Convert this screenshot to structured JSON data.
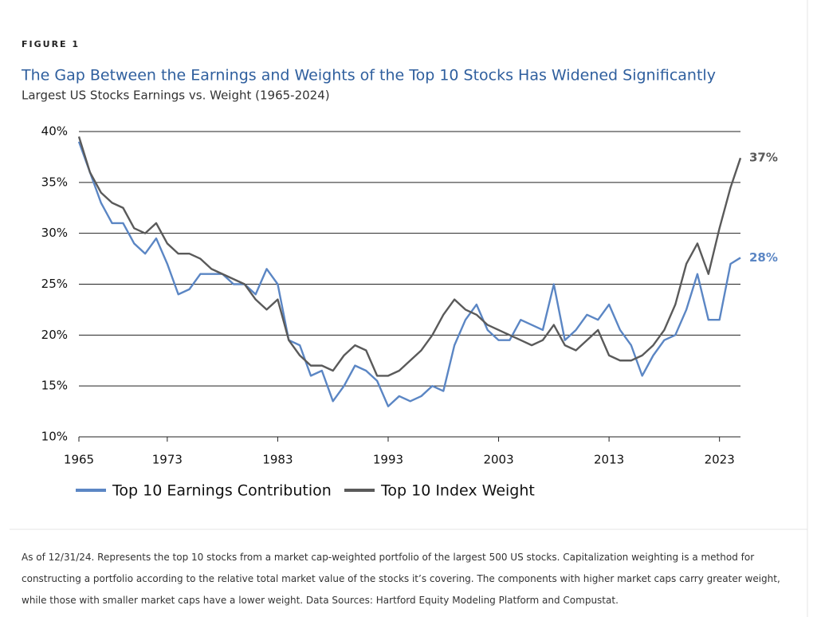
{
  "figure_label": "FIGURE 1",
  "chart_data": {
    "type": "line",
    "title": "The Gap Between the Earnings and Weights of the Top 10 Stocks Has Widened Significantly",
    "subtitle": "Largest US Stocks Earnings vs. Weight (1965-2024)",
    "x": [
      1965,
      1966,
      1967,
      1968,
      1969,
      1970,
      1971,
      1972,
      1973,
      1974,
      1975,
      1976,
      1977,
      1978,
      1979,
      1980,
      1981,
      1982,
      1983,
      1984,
      1985,
      1986,
      1987,
      1988,
      1989,
      1990,
      1991,
      1992,
      1993,
      1994,
      1995,
      1996,
      1997,
      1998,
      1999,
      2000,
      2001,
      2002,
      2003,
      2004,
      2005,
      2006,
      2007,
      2008,
      2009,
      2010,
      2011,
      2012,
      2013,
      2014,
      2015,
      2016,
      2017,
      2018,
      2019,
      2020,
      2021,
      2022,
      2023,
      2024,
      2024.9
    ],
    "xlim": [
      1965,
      2024.9
    ],
    "xticks": [
      1965,
      1973,
      1983,
      1993,
      2003,
      2013,
      2023
    ],
    "ylim": [
      10,
      40
    ],
    "yticks": [
      {
        "value": 10,
        "label": "10%"
      },
      {
        "value": 15,
        "label": "15%"
      },
      {
        "value": 20,
        "label": "20%"
      },
      {
        "value": 25,
        "label": "25%"
      },
      {
        "value": 30,
        "label": "30%"
      },
      {
        "value": 35,
        "label": "35%"
      },
      {
        "value": 40,
        "label": "40%"
      }
    ],
    "grid": true,
    "series": [
      {
        "name": "Top 10 Earnings Contribution",
        "color": "#5b86c4",
        "values": [
          39,
          36,
          33,
          31,
          31,
          29,
          28,
          29.5,
          27,
          24,
          24.5,
          26,
          26,
          26,
          25,
          25,
          24,
          26.5,
          25,
          19.5,
          19,
          16,
          16.5,
          13.5,
          15,
          17,
          16.5,
          15.5,
          13,
          14,
          13.5,
          14,
          15,
          14.5,
          19,
          21.5,
          23,
          20.5,
          19.5,
          19.5,
          21.5,
          21,
          20.5,
          25,
          19.5,
          20.5,
          22,
          21.5,
          23,
          20.5,
          19,
          16,
          18,
          19.5,
          20,
          22.5,
          26,
          21.5,
          21.5,
          27,
          27.6
        ],
        "value_labels": [
          null,
          null,
          null,
          null,
          null,
          null,
          null,
          null,
          null,
          null,
          null,
          null,
          null,
          null,
          null,
          null,
          null,
          null,
          null,
          null,
          null,
          null,
          null,
          null,
          null,
          null,
          null,
          null,
          null,
          null,
          null,
          null,
          null,
          null,
          null,
          null,
          null,
          null,
          null,
          null,
          null,
          null,
          null,
          null,
          null,
          null,
          null,
          null,
          null,
          null,
          null,
          null,
          null,
          null,
          null,
          null,
          null,
          null,
          null,
          null,
          "28%"
        ]
      },
      {
        "name": "Top 10 Index Weight",
        "color": "#5a5a5a",
        "values": [
          39.5,
          36,
          34,
          33,
          32.5,
          30.5,
          30,
          31,
          29,
          28,
          28,
          27.5,
          26.5,
          26,
          25.5,
          25,
          23.5,
          22.5,
          23.5,
          19.5,
          18,
          17,
          17,
          16.5,
          18,
          19,
          18.5,
          16,
          16,
          16.5,
          17.5,
          18.5,
          20,
          22,
          23.5,
          22.5,
          22,
          21,
          20.5,
          20,
          19.5,
          19,
          19.5,
          21,
          19,
          18.5,
          19.5,
          20.5,
          18,
          17.5,
          17.5,
          18,
          19,
          20.5,
          23,
          27,
          29,
          26,
          30.5,
          34.5,
          37.4
        ],
        "value_labels": [
          null,
          null,
          null,
          null,
          null,
          null,
          null,
          null,
          null,
          null,
          null,
          null,
          null,
          null,
          null,
          null,
          null,
          null,
          null,
          null,
          null,
          null,
          null,
          null,
          null,
          null,
          null,
          null,
          null,
          null,
          null,
          null,
          null,
          null,
          null,
          null,
          null,
          null,
          null,
          null,
          null,
          null,
          null,
          null,
          null,
          null,
          null,
          null,
          null,
          null,
          null,
          null,
          null,
          null,
          null,
          null,
          null,
          null,
          null,
          null,
          "37%"
        ]
      }
    ]
  },
  "footnote": "As of 12/31/24. Represents the top 10 stocks from a market cap-weighted portfolio of the largest 500 US stocks. Capitalization weighting is a method for constructing a portfolio according to the relative total market value of the stocks it’s covering. The components with higher market caps carry greater weight, while those with smaller market caps have a lower weight. Data Sources: Hartford Equity Modeling Platform and Compustat."
}
